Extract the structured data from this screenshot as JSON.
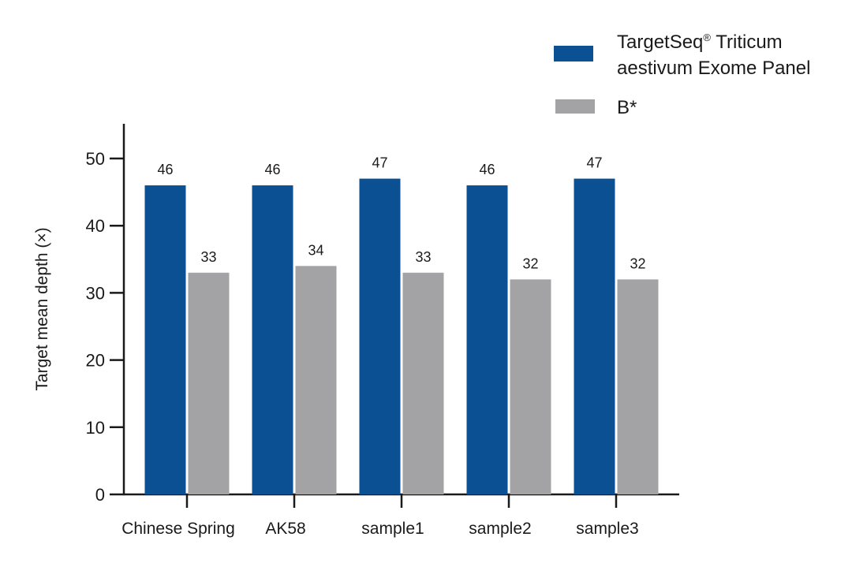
{
  "chart_data": {
    "type": "bar",
    "title": "",
    "xlabel": "",
    "ylabel": "Target mean depth (×)",
    "ylim": [
      0,
      55
    ],
    "yticks": [
      0,
      10,
      20,
      30,
      40,
      50
    ],
    "grid": false,
    "legend_position": "top-right",
    "categories": [
      "Chinese Spring",
      "AK58",
      "sample1",
      "sample2",
      "sample3"
    ],
    "series": [
      {
        "name": "TargetSeq® Triticum aestivum Exome Panel",
        "legend_lines": [
          "TargetSeq",
          "®",
          " Triticum",
          "aestivum Exome Panel"
        ],
        "color": "#0b5093",
        "values": [
          46,
          46,
          47,
          46,
          47
        ]
      },
      {
        "name": "B*",
        "legend_lines": [
          "B*"
        ],
        "color": "#a3a3a6",
        "values": [
          33,
          34,
          33,
          32,
          32
        ]
      }
    ]
  }
}
